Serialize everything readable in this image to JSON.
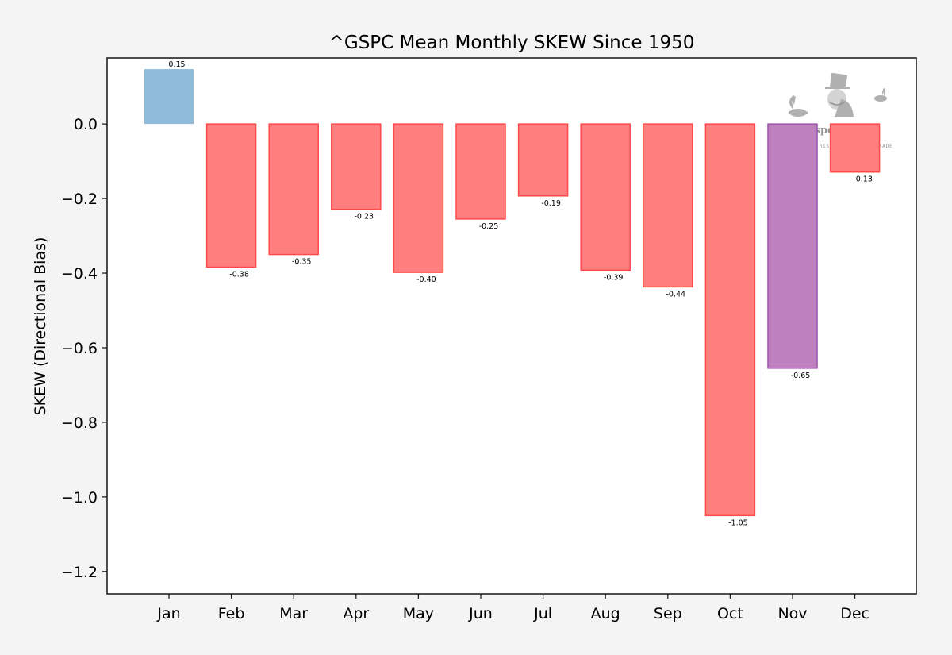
{
  "chart_data": {
    "type": "bar",
    "title": "^GSPC Mean Monthly SKEW Since 1950",
    "xlabel": "",
    "ylabel": "SKEW (Directional Bias)",
    "ylim": [
      -1.26,
      0.177
    ],
    "yticks": [
      0.0,
      -0.2,
      -0.4,
      -0.6,
      -0.8,
      -1.0,
      -1.2
    ],
    "ytick_labels": [
      "0.0",
      "−0.2",
      "−0.4",
      "−0.6",
      "−0.8",
      "−1.0",
      "−1.2"
    ],
    "categories": [
      "Jan",
      "Feb",
      "Mar",
      "Apr",
      "May",
      "Jun",
      "Jul",
      "Aug",
      "Sep",
      "Oct",
      "Nov",
      "Dec"
    ],
    "values": [
      0.147,
      -0.384,
      -0.35,
      -0.229,
      -0.398,
      -0.255,
      -0.193,
      -0.392,
      -0.437,
      -1.05,
      -0.655,
      -0.129
    ],
    "data_labels": [
      "0.15",
      "-0.38",
      "-0.35",
      "-0.23",
      "-0.40",
      "-0.25",
      "-0.19",
      "-0.39",
      "-0.44",
      "-1.05",
      "-0.65",
      "-0.13"
    ],
    "highlight_category": "Nov",
    "grid": false,
    "legend": "none"
  },
  "colors": {
    "positive_fill": "#8fbad8",
    "negative_fill": "#ff7f7f",
    "negative_edge": "#ff4a4a",
    "highlight_fill": "#bf80bf",
    "highlight_edge": "#a050b0",
    "highlight_tick": "#0000ee"
  },
  "watermark": {
    "brand": "evil speculator",
    "tagline": "KNOW YOUR RISK BEFORE YOU TRADE"
  }
}
